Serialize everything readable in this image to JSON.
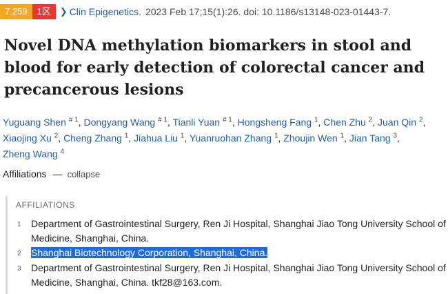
{
  "citation": {
    "impact_factor": "7.259",
    "zone": "1区",
    "journal": "Clin Epigenetics.",
    "details": "2023 Feb 17;15(1):26. doi: 10.1186/s13148-023-01443-7.",
    "badge_colors": {
      "impact": "#f5a623",
      "zone": "#e53935"
    }
  },
  "title": "Novel DNA methylation biomarkers in stool and blood for early detection of colorectal cancer and precancerous lesions",
  "authors": [
    {
      "name": "Yuguang Shen",
      "sup": "# 1"
    },
    {
      "name": "Dongyang Wang",
      "sup": "# 1"
    },
    {
      "name": "Tianli Yuan",
      "sup": "# 1"
    },
    {
      "name": "Hongsheng Fang",
      "sup": "1"
    },
    {
      "name": "Chen Zhu",
      "sup": "2"
    },
    {
      "name": "Juan Qin",
      "sup": "2"
    },
    {
      "name": "Xiaojing Xu",
      "sup": "2"
    },
    {
      "name": "Cheng Zhang",
      "sup": "1"
    },
    {
      "name": "Jiahua Liu",
      "sup": "1"
    },
    {
      "name": "Yuanruohan Zhang",
      "sup": "1"
    },
    {
      "name": "Zhoujin Wen",
      "sup": "1"
    },
    {
      "name": "Jian Tang",
      "sup": "3"
    },
    {
      "name": "Zheng Wang",
      "sup": "4"
    }
  ],
  "affiliations_toggle": {
    "label": "Affiliations",
    "dash": "—",
    "action": "collapse"
  },
  "affiliations": {
    "heading": "AFFILIATIONS",
    "items": [
      {
        "num": "1",
        "text": "Department of Gastrointestinal Surgery, Ren Ji Hospital, Shanghai Jiao Tong University School of Medicine, Shanghai, China.",
        "selected": false
      },
      {
        "num": "2",
        "text": "Shanghai Biotechnology Corporation, Shanghai, China.",
        "selected": true
      },
      {
        "num": "3",
        "text": "Department of Gastrointestinal Surgery, Ren Ji Hospital, Shanghai Jiao Tong University School of Medicine, Shanghai, China. tkf28@163.com.",
        "selected": false
      }
    ]
  }
}
